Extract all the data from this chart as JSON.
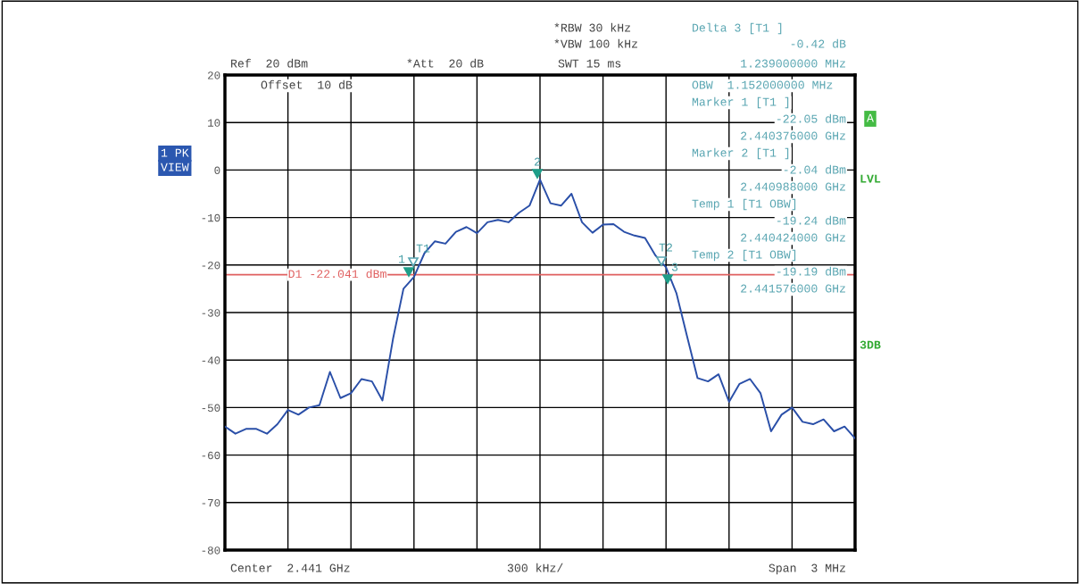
{
  "chart_data": {
    "type": "line",
    "categories": [
      null,
      null,
      null,
      null,
      null,
      null,
      null,
      null,
      null,
      null,
      null,
      null,
      null,
      null,
      null,
      null,
      null,
      null,
      null,
      null,
      null,
      null,
      null,
      null,
      null,
      null,
      null,
      null,
      null,
      null,
      null,
      null,
      null,
      null,
      null,
      null,
      null,
      null,
      null,
      null,
      null,
      null,
      null,
      null,
      null,
      null,
      null,
      null,
      null,
      null,
      null,
      null,
      null,
      null,
      null,
      null,
      null,
      null,
      null,
      null,
      null
    ],
    "series": [
      {
        "color": "#2a4fa8",
        "values": [
          -54,
          -55.5,
          -54.5,
          -54.5,
          -55.5,
          -53.5,
          -50.5,
          -51.5,
          -50,
          -49.5,
          -42.5,
          -48,
          -47,
          -44,
          -44.5,
          -48.5,
          -35.6,
          -25,
          -22.5,
          -17.5,
          -15,
          -15.5,
          -13,
          -12,
          -13.3,
          -11,
          -10.5,
          -11,
          -9,
          -7.5,
          -2,
          -7,
          -7.5,
          -5,
          -11,
          -13.2,
          -11.5,
          -11.4,
          -13,
          -13.8,
          -14.3,
          -18,
          -20.5,
          -26,
          -35,
          -43.8,
          -44.5,
          -43,
          -48.8,
          -45,
          -44,
          -47,
          -55,
          -51.5,
          -50,
          -53,
          -53.5,
          -52.5,
          -55,
          -54,
          -56.5
        ]
      }
    ],
    "ylim": [
      -80,
      20
    ],
    "yticks": [
      -80,
      -70,
      -60,
      -50,
      -40,
      -30,
      -20,
      -10,
      0,
      10,
      20
    ],
    "grid": true,
    "line_style": "solid",
    "ref_lines": [
      {
        "axis": "y",
        "value": -22.041,
        "label": "D1 -22.041 dBm",
        "color": "#e06060"
      }
    ],
    "annotations": [
      "1",
      "2",
      "3",
      "T1",
      "T2",
      "Ref  20 dBm",
      "*Att  20 dB",
      "*RBW 30 kHz",
      "*VBW 100 kHz",
      "SWT 15 ms",
      "Offset  10 dB",
      "1 PK",
      "VIEW",
      "A",
      "LVL",
      "3DB",
      "Delta 3 [T1 ]",
      "-0.42 dB",
      "1.239000000 MHz",
      "OBW  1.152000000 MHz",
      "Marker 1 [T1 ]",
      "-22.05 dBm",
      "2.440376000 GHz",
      "Marker 2 [T1 ]",
      "-2.04 dBm",
      "2.440988000 GHz",
      "Temp 1 [T1 OBW]",
      "-19.24 dBm",
      "2.440424000 GHz",
      "Temp 2 [T1 OBW]",
      "-19.19 dBm",
      "2.441576000 GHz",
      "Center  2.441 GHz",
      "300 kHz/",
      "Span  3 MHz"
    ]
  }
}
